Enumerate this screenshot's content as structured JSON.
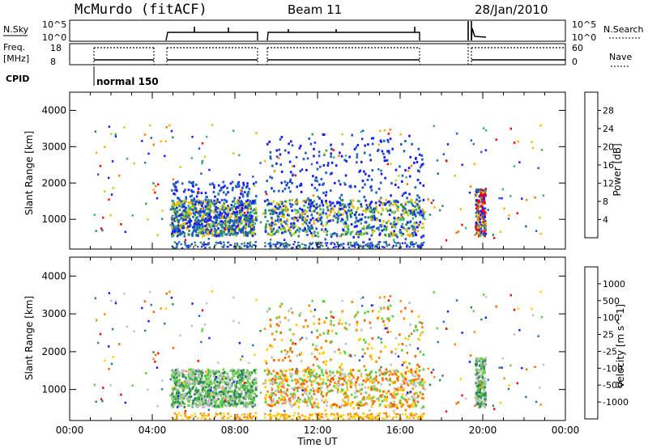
{
  "header": {
    "station": "McMurdo (fitACF)",
    "beam": "Beam 11",
    "date": "28/Jan/2010"
  },
  "top_panels": {
    "nsky_label": "N.Sky",
    "nsky_ticks": [
      "10^5",
      "10^0"
    ],
    "nsearch_label": "N.Search",
    "nsearch_ticks": [
      "10^5",
      "10^0"
    ],
    "freq_label": "Freq.",
    "freq_unit": "[MHz]",
    "freq_ticks": [
      "18",
      "8"
    ],
    "nave_label": "Nave",
    "nave_ticks": [
      "60",
      "0"
    ],
    "cpid_label": "CPID",
    "cpid_text": "normal 150"
  },
  "chart_data": [
    {
      "type": "heatmap",
      "panel": "power",
      "ylabel": "Slant Range [km]",
      "yticks": [
        "1000",
        "2000",
        "3000",
        "4000"
      ],
      "ylim": [
        180,
        4500
      ],
      "xlim": [
        0,
        24
      ],
      "colorbar": {
        "label": "Power [dB]",
        "ticks": [
          "4",
          "8",
          "12",
          "16",
          "20",
          "24",
          "28"
        ],
        "colors": [
          "#1a1aff",
          "#1f5fbf",
          "#2e8b57",
          "#3cb371",
          "#b5d81e",
          "#ffb000",
          "#ff7800",
          "#ff0000"
        ]
      },
      "echo_regions": [
        {
          "t0": 4.9,
          "t1": 9.0,
          "r0": 500,
          "r1": 2000,
          "dominant": "8-20 dB"
        },
        {
          "t0": 9.4,
          "t1": 17.1,
          "r0": 400,
          "r1": 3300,
          "dominant": "4-12 dB"
        },
        {
          "t0": 19.6,
          "t1": 20.1,
          "r0": 500,
          "r1": 1800,
          "dominant": "24-28 dB"
        }
      ]
    },
    {
      "type": "heatmap",
      "panel": "velocity",
      "ylabel": "Slant Range [km]",
      "yticks": [
        "1000",
        "2000",
        "3000",
        "4000"
      ],
      "ylim": [
        180,
        4500
      ],
      "xlim": [
        0,
        24
      ],
      "xlabel": "Time UT",
      "xticks": [
        "00:00",
        "04:00",
        "08:00",
        "12:00",
        "16:00",
        "20:00",
        "00:00"
      ],
      "colorbar": {
        "label": "Velocity [m s^-1]",
        "ticks": [
          "1000",
          "500",
          "100",
          "25",
          "-25",
          "-100",
          "-500",
          "-1000"
        ],
        "colors": [
          "#1a1aff",
          "#2b6fbf",
          "#2e8b57",
          "#5fd13c",
          "#c0c0c0",
          "#ffd000",
          "#ff8c00",
          "#ff6000",
          "#ff0000"
        ]
      },
      "echo_regions": [
        {
          "t0": 4.9,
          "t1": 9.0,
          "r0": 500,
          "r1": 1500,
          "dominant": "100 to 500"
        },
        {
          "t0": 9.4,
          "t1": 17.1,
          "r0": 400,
          "r1": 3300,
          "dominant": "-500 to 100"
        },
        {
          "t0": 19.6,
          "t1": 20.1,
          "r0": 500,
          "r1": 1800,
          "dominant": "-25 to 100"
        }
      ]
    }
  ]
}
